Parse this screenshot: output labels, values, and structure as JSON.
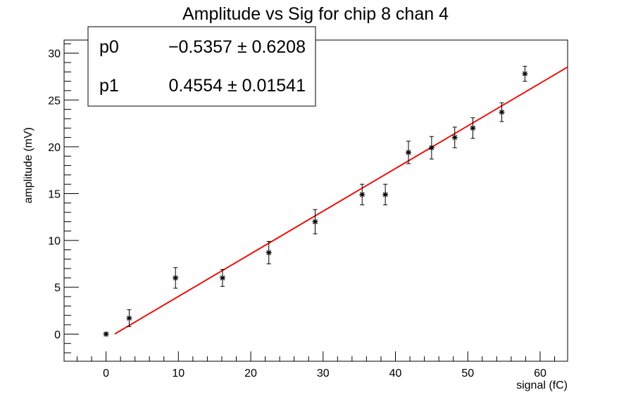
{
  "chart_data": {
    "type": "scatter",
    "title": "Amplitude vs Sig for chip 8 chan 4",
    "xlabel": "signal (fC)",
    "ylabel": "amplitude (mV)",
    "xlim": [
      -5.8,
      63.8
    ],
    "ylim": [
      -2.9,
      31.4
    ],
    "xticks": [
      0,
      10,
      20,
      30,
      40,
      50,
      60
    ],
    "yticks": [
      0,
      5,
      10,
      15,
      20,
      25,
      30
    ],
    "grid": false,
    "points": [
      {
        "x": 0.0,
        "y": 0.0,
        "err": 0.0
      },
      {
        "x": 3.2,
        "y": 1.7,
        "err": 0.9
      },
      {
        "x": 9.6,
        "y": 6.0,
        "err": 1.1
      },
      {
        "x": 16.1,
        "y": 6.0,
        "err": 0.9
      },
      {
        "x": 22.5,
        "y": 8.7,
        "err": 1.2
      },
      {
        "x": 28.9,
        "y": 12.0,
        "err": 1.3
      },
      {
        "x": 35.4,
        "y": 14.9,
        "err": 1.1
      },
      {
        "x": 38.6,
        "y": 14.9,
        "err": 1.1
      },
      {
        "x": 41.8,
        "y": 19.4,
        "err": 1.2
      },
      {
        "x": 45.0,
        "y": 19.9,
        "err": 1.2
      },
      {
        "x": 48.2,
        "y": 21.0,
        "err": 1.1
      },
      {
        "x": 50.7,
        "y": 22.0,
        "err": 1.1
      },
      {
        "x": 54.7,
        "y": 23.7,
        "err": 1.0
      },
      {
        "x": 57.9,
        "y": 27.8,
        "err": 0.8
      }
    ],
    "fit": {
      "color": "#e8140f",
      "p0": -0.5357,
      "p1": 0.4554,
      "x_range": [
        1.2,
        63.8
      ]
    },
    "stats_box": {
      "rows": [
        {
          "name": "p0",
          "value": "−0.5357 ± 0.6208"
        },
        {
          "name": "p1",
          "value": "0.4554 ± 0.01541"
        }
      ],
      "placement": "top-left"
    },
    "marker_color": "#000000"
  }
}
